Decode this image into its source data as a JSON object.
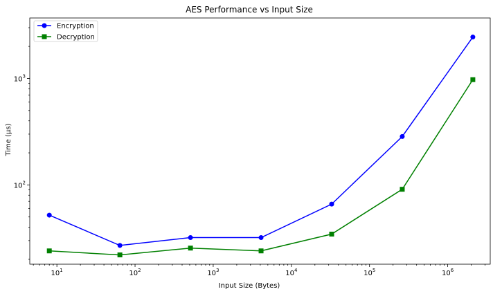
{
  "chart_data": {
    "type": "line",
    "title": "AES Performance vs Input Size",
    "xlabel": "Input Size (Bytes)",
    "ylabel": "Time (µs)",
    "xscale": "log",
    "yscale": "log",
    "xlim": [
      4.5,
      3500000
    ],
    "ylim": [
      18,
      3700
    ],
    "x": [
      8,
      64,
      512,
      4096,
      32768,
      262144,
      2097152
    ],
    "x_ticks": [
      {
        "base": "10",
        "exp": "1",
        "value": 10
      },
      {
        "base": "10",
        "exp": "2",
        "value": 100
      },
      {
        "base": "10",
        "exp": "3",
        "value": 1000
      },
      {
        "base": "10",
        "exp": "4",
        "value": 10000
      },
      {
        "base": "10",
        "exp": "5",
        "value": 100000
      },
      {
        "base": "10",
        "exp": "6",
        "value": 1000000
      }
    ],
    "y_ticks": [
      {
        "base": "10",
        "exp": "2",
        "value": 100
      },
      {
        "base": "10",
        "exp": "3",
        "value": 1000
      }
    ],
    "series": [
      {
        "name": "Encryption",
        "color": "#0000ff",
        "marker": "circle",
        "values": [
          52,
          27,
          32,
          32,
          66,
          285,
          2450
        ]
      },
      {
        "name": "Decryption",
        "color": "#008000",
        "marker": "square",
        "values": [
          24,
          22,
          25.5,
          24,
          34.5,
          91,
          975
        ]
      }
    ],
    "legend": "top-left",
    "grid": false
  }
}
